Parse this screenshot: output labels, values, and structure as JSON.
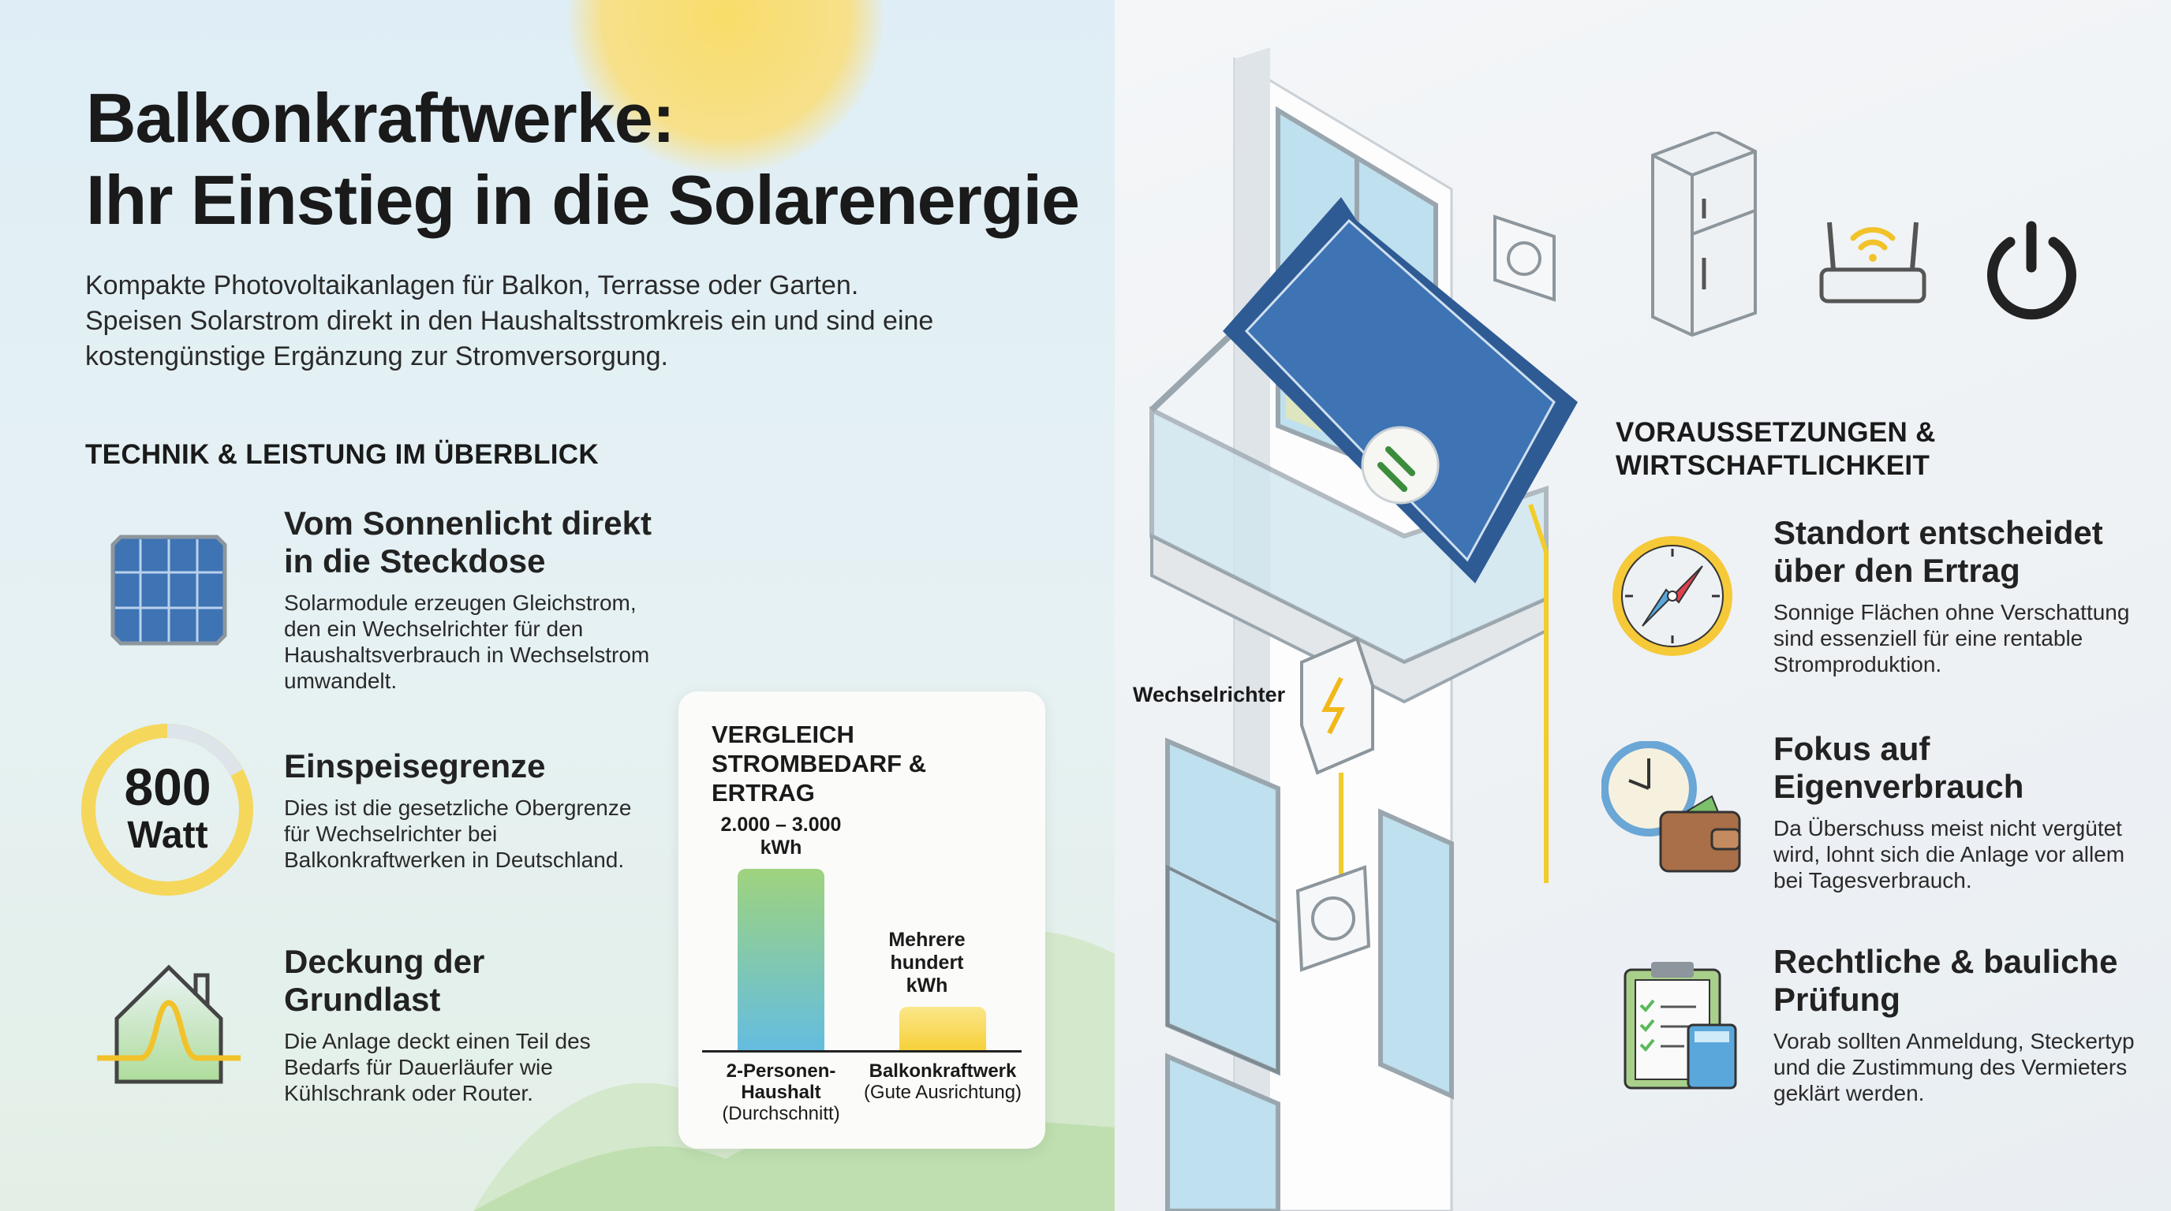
{
  "title_line1": "Balkonkraftwerke:",
  "title_line2": "Ihr Einstieg in die Solarenergie",
  "subtitle": "Kompakte Photovoltaikanlagen für Balkon, Terrasse oder Garten. Speisen Solarstrom direkt in den Haushaltsstromkreis ein und sind eine kostengünstige Ergänzung zur Stromversorgung.",
  "left_section": {
    "heading": "TECHNIK & LEISTUNG IM ÜBERBLICK",
    "items": [
      {
        "icon": "solar-panel-icon",
        "title": "Vom Sonnenlicht direkt in die Steckdose",
        "desc": "Solarmodule erzeugen Gleichstrom, den ein Wechselrichter für den Haushaltsverbrauch in Wechselstrom umwandelt."
      },
      {
        "icon": "gauge-800-watt-icon",
        "gauge_value": "800",
        "gauge_unit": "Watt",
        "title": "Einspeisegrenze",
        "desc": "Dies ist die gesetzliche Obergrenze für Wechselrichter bei Balkonkraftwerken in Deutschland."
      },
      {
        "icon": "house-load-curve-icon",
        "title": "Deckung der Grundlast",
        "desc": "Die Anlage deckt einen Teil des Bedarfs für Dauerläufer wie Kühlschrank oder Router."
      }
    ]
  },
  "chart_data": {
    "type": "bar",
    "title": "VERGLEICH STROMBEDARF & ERTRAG",
    "categories": [
      {
        "name": "2-Personen-Haushalt",
        "note": "(Durchschnitt)"
      },
      {
        "name": "Balkonkraftwerk",
        "note": "(Gute Ausrichtung)"
      }
    ],
    "value_labels": [
      "2.000 – 3.000 kWh",
      "Mehrere hundert kWh"
    ],
    "values_kwh": [
      2500,
      500
    ],
    "colors": [
      [
        "#9fd37e",
        "#64bde0"
      ],
      [
        "#fbe68a",
        "#f6d13a"
      ]
    ]
  },
  "diagram": {
    "inverter_label": "Wechselrichter"
  },
  "right_section": {
    "heading": "VORAUSSETZUNGEN & WIRTSCHAFTLICHKEIT",
    "items": [
      {
        "icon": "compass-icon",
        "title": "Standort entscheidet über den Ertrag",
        "desc": "Sonnige Flächen ohne Verschattung sind essenziell für eine rentable Stromproduktion."
      },
      {
        "icon": "clock-wallet-icon",
        "title": "Fokus auf Eigenverbrauch",
        "desc": "Da Überschuss meist nicht vergütet wird, lohnt sich die Anlage vor allem bei Tagesverbrauch."
      },
      {
        "icon": "clipboard-calculator-icon",
        "title": "Rechtliche & bauliche Prüfung",
        "desc": "Vorab sollten Anmeldung, Steckertyp und die Zustimmung des Vermieters geklärt werden."
      }
    ]
  },
  "colors": {
    "accent_yellow": "#f5c938",
    "panel_blue": "#3a6aa8",
    "text": "#1a1a1a"
  }
}
